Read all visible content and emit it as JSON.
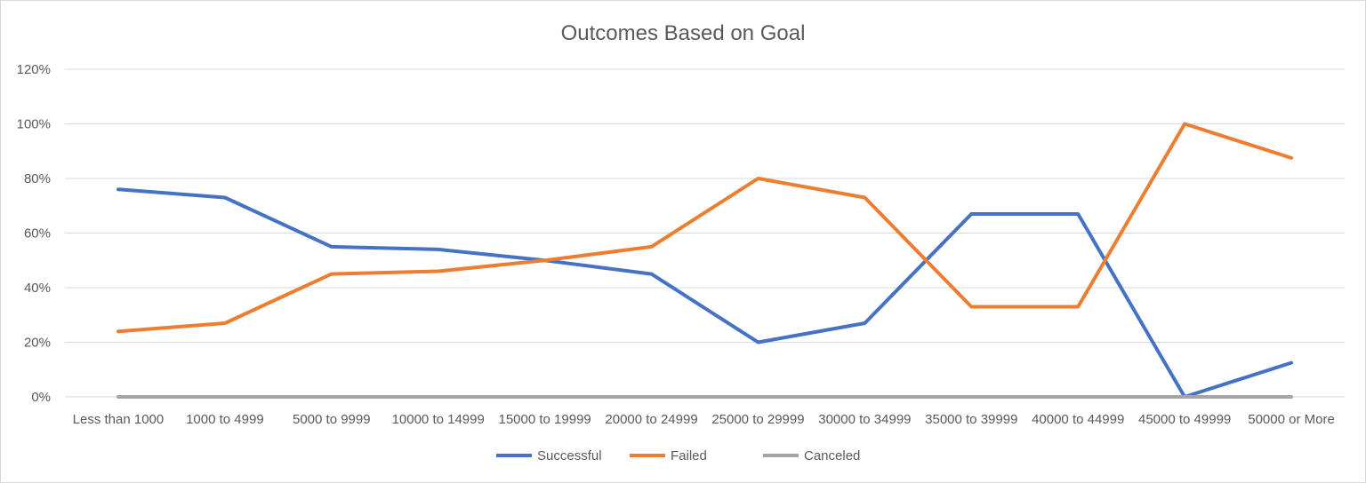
{
  "chart_data": {
    "type": "line",
    "title": "Outcomes Based on Goal",
    "xlabel": "",
    "ylabel": "",
    "categories": [
      "Less than 1000",
      "1000 to 4999",
      "5000 to 9999",
      "10000 to 14999",
      "15000 to 19999",
      "20000 to 24999",
      "25000 to 29999",
      "30000 to 34999",
      "35000 to 39999",
      "40000 to 44999",
      "45000 to 49999",
      "50000 or More"
    ],
    "y_ticks": [
      "0%",
      "20%",
      "40%",
      "60%",
      "80%",
      "100%",
      "120%"
    ],
    "ylim": [
      0,
      1.2
    ],
    "grid": true,
    "legend_position": "bottom",
    "series": [
      {
        "name": "Successful",
        "color": "#4472c4",
        "values": [
          0.76,
          0.73,
          0.55,
          0.54,
          0.5,
          0.45,
          0.2,
          0.27,
          0.67,
          0.67,
          0.0,
          0.125
        ]
      },
      {
        "name": "Failed",
        "color": "#ed7d31",
        "values": [
          0.24,
          0.27,
          0.45,
          0.46,
          0.5,
          0.55,
          0.8,
          0.73,
          0.33,
          0.33,
          1.0,
          0.875
        ]
      },
      {
        "name": "Canceled",
        "color": "#a5a5a5",
        "values": [
          0,
          0,
          0,
          0,
          0,
          0,
          0,
          0,
          0,
          0,
          0,
          0
        ]
      }
    ]
  }
}
